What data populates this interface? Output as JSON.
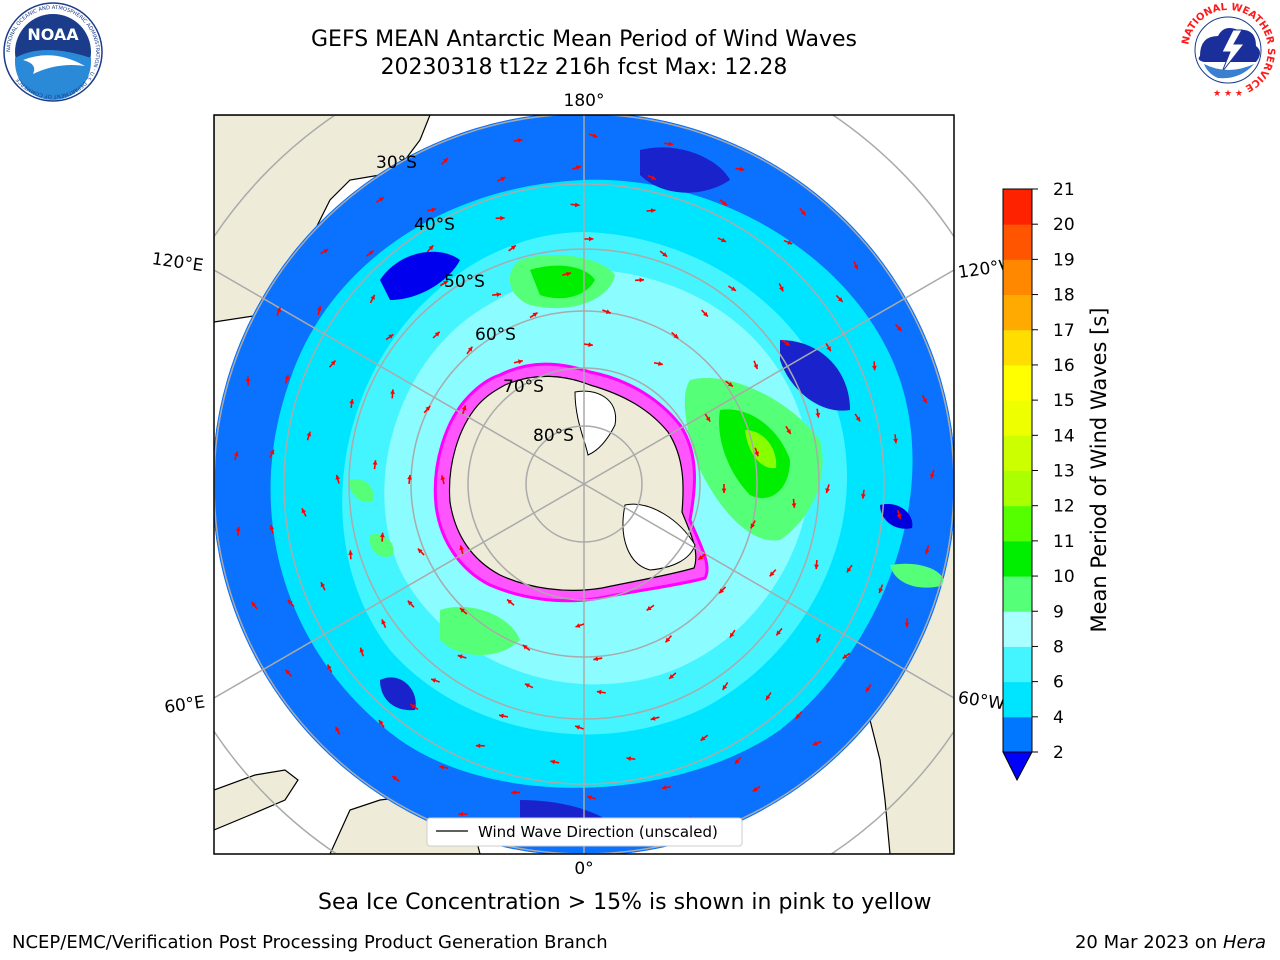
{
  "header": {
    "title_line1": "GEFS MEAN Antarctic Mean Period of Wind Waves",
    "title_line2": "20230318 t12z 216h fcst   Max: 12.28"
  },
  "logos": {
    "left": "NOAA",
    "left_ring_text": "NATIONAL OCEANIC AND ATMOSPHERIC ADMINISTRATION · U.S. DEPARTMENT OF COMMERCE",
    "right_ring_text": "NATIONAL WEATHER SERVICE"
  },
  "map": {
    "projection": "south-polar-stereographic",
    "lon_labels": {
      "top": "180°",
      "bottom": "0°",
      "upper_left": "120°E",
      "upper_right": "120°W",
      "lower_left": "60°E",
      "lower_right": "60°W"
    },
    "lat_labels": [
      "30°S",
      "40°S",
      "50°S",
      "60°S",
      "70°S",
      "80°S"
    ],
    "legend_label": "Wind Wave Direction (unscaled)",
    "colors": {
      "land": "#eeecd9",
      "ice_edge": "#ff33ff",
      "arrow": "#ff0000",
      "grid": "#aaaaaa"
    }
  },
  "colorbar": {
    "label": "Mean Period of Wind Waves [s]",
    "ticks": [
      "2",
      "4",
      "6",
      "8",
      "9",
      "10",
      "11",
      "12",
      "13",
      "14",
      "15",
      "16",
      "17",
      "18",
      "19",
      "20",
      "21"
    ],
    "colors": [
      "#0077ff",
      "#00e5ff",
      "#44f5ff",
      "#a9ffff",
      "#55ff77",
      "#00ee00",
      "#55ff00",
      "#aaff00",
      "#ccff00",
      "#eeff00",
      "#ffff00",
      "#ffdd00",
      "#ffaa00",
      "#ff8800",
      "#ff5500",
      "#ff2200"
    ],
    "under_color": "#0000ff"
  },
  "footer": {
    "caption": "Sea Ice Concentration > 15% is shown in pink to yellow",
    "left": "NCEP/EMC/Verification Post Processing Product Generation Branch",
    "right_date": "20 Mar 2023 on ",
    "right_machine": "Hera"
  }
}
